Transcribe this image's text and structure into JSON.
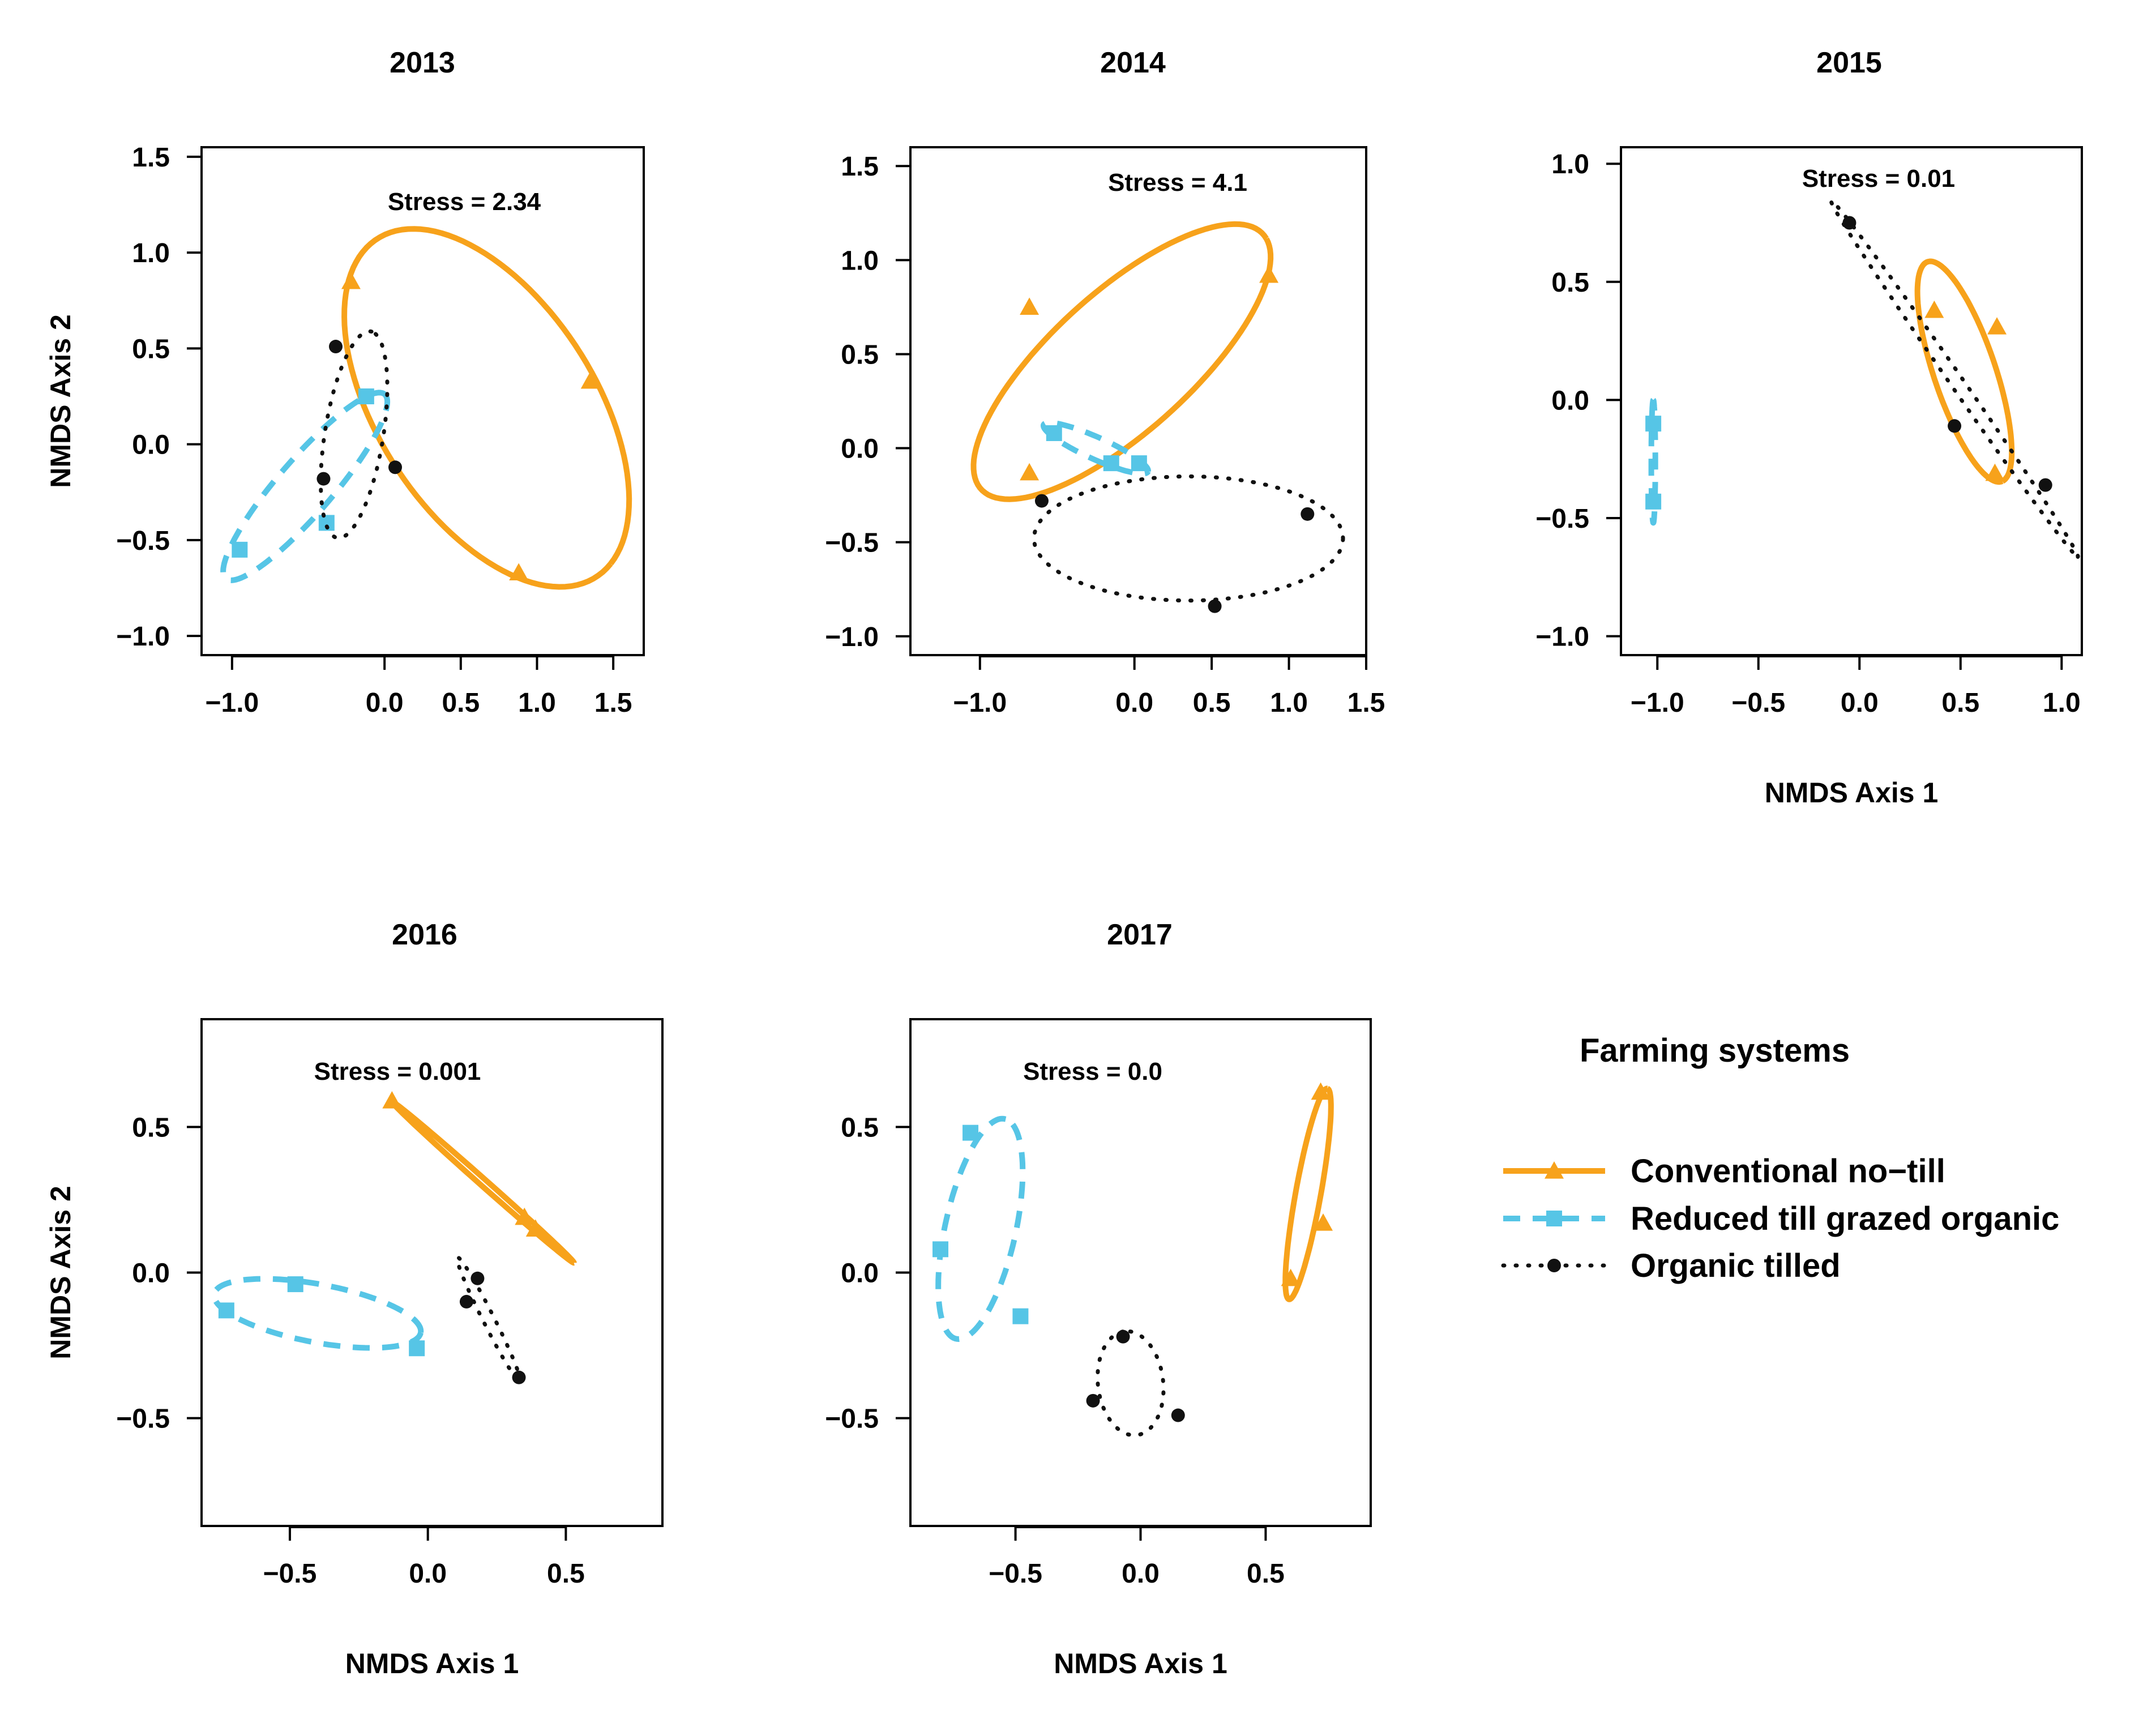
{
  "colors": {
    "conventional": "#F7A21B",
    "reduced": "#56C5E6",
    "organic": "#111111"
  },
  "legend": {
    "title": "Farming systems",
    "items": [
      {
        "key": "conventional",
        "label": "Conventional no−till",
        "marker": "triangle",
        "line": "solid"
      },
      {
        "key": "reduced",
        "label": "Reduced till grazed organic",
        "marker": "square",
        "line": "dashed"
      },
      {
        "key": "organic",
        "label": "Organic tilled",
        "marker": "circle",
        "line": "dotted"
      }
    ]
  },
  "chart_data": [
    {
      "type": "scatter",
      "title": "2013",
      "stress": "Stress = 2.34",
      "xlabel": "",
      "ylabel": "NMDS Axis 2",
      "xlim": [
        -1.2,
        1.7
      ],
      "ylim": [
        -1.1,
        1.55
      ],
      "xticks": [
        -1.0,
        0.0,
        0.5,
        1.0,
        1.5
      ],
      "xtick_labels": [
        "−1.0",
        "0.0",
        "0.5",
        "1.0",
        "1.5"
      ],
      "yticks": [
        -1.0,
        -0.5,
        0.0,
        0.5,
        1.0,
        1.5
      ],
      "ytick_labels": [
        "−1.0",
        "−0.5",
        "0.0",
        "0.5",
        "1.0",
        "1.5"
      ],
      "series": [
        {
          "name": "Conventional no−till",
          "key": "conventional",
          "points": [
            [
              -0.22,
              0.85
            ],
            [
              1.35,
              0.33
            ],
            [
              0.88,
              -0.67
            ]
          ],
          "ellipse": {
            "cx": 0.67,
            "cy": 0.19,
            "a": 1.15,
            "b": 0.65,
            "angle": -45
          }
        },
        {
          "name": "Reduced till grazed organic",
          "key": "reduced",
          "points": [
            [
              -0.95,
              -0.55
            ],
            [
              -0.38,
              -0.41
            ],
            [
              -0.12,
              0.25
            ]
          ],
          "ellipse": {
            "cx": -0.52,
            "cy": -0.22,
            "a": 0.71,
            "b": 0.16,
            "angle": 42
          }
        },
        {
          "name": "Organic tilled",
          "key": "organic",
          "points": [
            [
              -0.32,
              0.51
            ],
            [
              -0.4,
              -0.18
            ],
            [
              0.07,
              -0.12
            ]
          ],
          "ellipse": {
            "cx": -0.2,
            "cy": 0.05,
            "a": 0.55,
            "b": 0.19,
            "angle": 78
          }
        }
      ]
    },
    {
      "type": "scatter",
      "title": "2014",
      "stress": "Stress = 4.1",
      "xlabel": "",
      "ylabel": "",
      "xlim": [
        -1.45,
        1.5
      ],
      "ylim": [
        -1.1,
        1.6
      ],
      "xticks": [
        -1.0,
        0.0,
        0.5,
        1.0,
        1.5
      ],
      "xtick_labels": [
        "−1.0",
        "0.0",
        "0.5",
        "1.0",
        "1.5"
      ],
      "yticks": [
        -1.0,
        -0.5,
        0.0,
        0.5,
        1.0,
        1.5
      ],
      "ytick_labels": [
        "−1.0",
        "−0.5",
        "0.0",
        "0.5",
        "1.0",
        "1.5"
      ],
      "series": [
        {
          "name": "Conventional no−till",
          "key": "conventional",
          "points": [
            [
              -0.68,
              0.75
            ],
            [
              0.87,
              0.92
            ],
            [
              -0.68,
              -0.13
            ]
          ],
          "ellipse": {
            "cx": -0.08,
            "cy": 0.46,
            "a": 1.14,
            "b": 0.4,
            "angle": 35
          }
        },
        {
          "name": "Reduced till grazed organic",
          "key": "reduced",
          "points": [
            [
              -0.52,
              0.08
            ],
            [
              -0.15,
              -0.08
            ],
            [
              0.03,
              -0.08
            ]
          ],
          "ellipse": {
            "cx": -0.25,
            "cy": 0.0,
            "a": 0.36,
            "b": 0.06,
            "angle": -20
          }
        },
        {
          "name": "Organic tilled",
          "key": "organic",
          "points": [
            [
              -0.6,
              -0.28
            ],
            [
              1.12,
              -0.35
            ],
            [
              0.52,
              -0.84
            ]
          ],
          "ellipse": {
            "cx": 0.35,
            "cy": -0.48,
            "a": 1.0,
            "b": 0.33,
            "angle": 0
          }
        }
      ]
    },
    {
      "type": "scatter",
      "title": "2015",
      "stress": "Stress = 0.01",
      "xlabel": "NMDS Axis 1",
      "ylabel": "",
      "xlim": [
        -1.18,
        1.1
      ],
      "ylim": [
        -1.08,
        1.07
      ],
      "xticks": [
        -1.0,
        -0.5,
        0.0,
        0.5,
        1.0
      ],
      "xtick_labels": [
        "−1.0",
        "−0.5",
        "0.0",
        "0.5",
        "1.0"
      ],
      "yticks": [
        -1.0,
        -0.5,
        0.0,
        0.5,
        1.0
      ],
      "ytick_labels": [
        "−1.0",
        "−0.5",
        "0.0",
        "0.5",
        "1.0"
      ],
      "series": [
        {
          "name": "Conventional no−till",
          "key": "conventional",
          "points": [
            [
              0.37,
              0.38
            ],
            [
              0.68,
              0.31
            ],
            [
              0.67,
              -0.31
            ]
          ],
          "ellipse": {
            "cx": 0.52,
            "cy": 0.12,
            "a": 0.5,
            "b": 0.15,
            "angle": -68
          }
        },
        {
          "name": "Reduced till grazed organic",
          "key": "reduced",
          "points": [
            [
              -1.02,
              -0.1
            ],
            [
              -1.02,
              -0.43
            ]
          ],
          "ellipse": {
            "cx": -1.02,
            "cy": -0.26,
            "a": 0.26,
            "b": 0.01,
            "angle": 90
          }
        },
        {
          "name": "Organic tilled",
          "key": "organic",
          "points": [
            [
              -0.05,
              0.75
            ],
            [
              0.47,
              -0.11
            ],
            [
              0.92,
              -0.36
            ]
          ],
          "ellipse": {
            "cx": 0.47,
            "cy": 0.09,
            "a": 0.97,
            "b": 0.03,
            "angle": -51
          }
        }
      ]
    },
    {
      "type": "scatter",
      "title": "2016",
      "stress": "Stress = 0.001",
      "xlabel": "NMDS Axis 1",
      "ylabel": "NMDS Axis 2",
      "xlim": [
        -0.82,
        0.85
      ],
      "ylim": [
        -0.87,
        0.87
      ],
      "xticks": [
        -0.5,
        0.0,
        0.5
      ],
      "xtick_labels": [
        "−0.5",
        "0.0",
        "0.5"
      ],
      "yticks": [
        -0.5,
        0.0,
        0.5
      ],
      "ytick_labels": [
        "−0.5",
        "0.0",
        "0.5"
      ],
      "series": [
        {
          "name": "Conventional no−till",
          "key": "conventional",
          "points": [
            [
              -0.13,
              0.59
            ],
            [
              0.35,
              0.19
            ],
            [
              0.39,
              0.15
            ]
          ],
          "ellipse": {
            "cx": 0.2,
            "cy": 0.31,
            "a": 0.43,
            "b": 0.012,
            "angle": -40
          }
        },
        {
          "name": "Reduced till grazed organic",
          "key": "reduced",
          "points": [
            [
              -0.73,
              -0.13
            ],
            [
              -0.48,
              -0.04
            ],
            [
              -0.04,
              -0.26
            ]
          ],
          "ellipse": {
            "cx": -0.4,
            "cy": -0.14,
            "a": 0.38,
            "b": 0.1,
            "angle": -10
          }
        },
        {
          "name": "Organic tilled",
          "key": "organic",
          "points": [
            [
              0.18,
              -0.02
            ],
            [
              0.14,
              -0.1
            ],
            [
              0.33,
              -0.36
            ]
          ],
          "ellipse": {
            "cx": 0.22,
            "cy": -0.16,
            "a": 0.24,
            "b": 0.02,
            "angle": -62
          }
        }
      ]
    },
    {
      "type": "scatter",
      "title": "2017",
      "stress": "Stress = 0.0",
      "xlabel": "NMDS Axis 1",
      "ylabel": "",
      "xlim": [
        -0.92,
        0.92
      ],
      "ylim": [
        -0.87,
        0.87
      ],
      "xticks": [
        -0.5,
        0.0,
        0.5
      ],
      "xtick_labels": [
        "−0.5",
        "0.0",
        "0.5"
      ],
      "yticks": [
        -0.5,
        0.0,
        0.5
      ],
      "ytick_labels": [
        "−0.5",
        "0.0",
        "0.5"
      ],
      "series": [
        {
          "name": "Conventional no−till",
          "key": "conventional",
          "points": [
            [
              0.6,
              -0.02
            ],
            [
              0.73,
              0.17
            ],
            [
              0.72,
              0.62
            ]
          ],
          "ellipse": {
            "cx": 0.67,
            "cy": 0.27,
            "a": 0.37,
            "b": 0.05,
            "angle": 78
          }
        },
        {
          "name": "Reduced till grazed organic",
          "key": "reduced",
          "points": [
            [
              -0.68,
              0.48
            ],
            [
              -0.8,
              0.08
            ],
            [
              -0.48,
              -0.15
            ]
          ],
          "ellipse": {
            "cx": -0.64,
            "cy": 0.15,
            "a": 0.39,
            "b": 0.14,
            "angle": 75
          }
        },
        {
          "name": "Organic tilled",
          "key": "organic",
          "points": [
            [
              -0.07,
              -0.22
            ],
            [
              -0.19,
              -0.44
            ],
            [
              0.15,
              -0.49
            ]
          ],
          "ellipse": {
            "cx": -0.04,
            "cy": -0.38,
            "a": 0.18,
            "b": 0.13,
            "angle": 100
          }
        }
      ]
    }
  ]
}
